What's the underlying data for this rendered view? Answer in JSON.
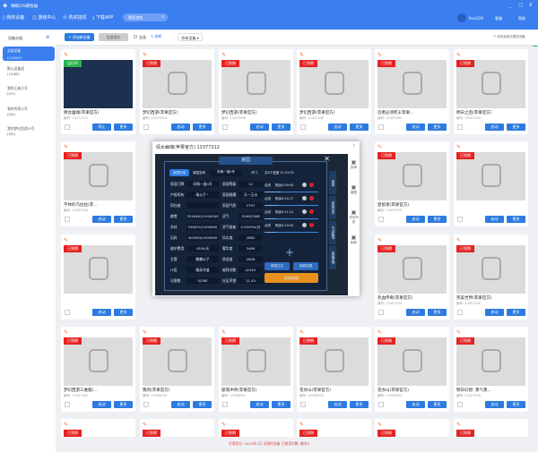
{
  "app": {
    "title": "辣椒iOS模拟器",
    "window_controls": [
      "_",
      "□",
      "X"
    ]
  },
  "nav": {
    "items": [
      {
        "label": "我的设备",
        "icon": "phone-icon"
      },
      {
        "label": "游戏中心",
        "icon": "gamepad-icon"
      },
      {
        "label": "购买挂机",
        "icon": "cart-icon"
      },
      {
        "label": "下载APP",
        "icon": "download-icon"
      }
    ],
    "search_placeholder": "搜索游戏"
  },
  "user": {
    "name": "feco520",
    "service": "客服",
    "help": "帮助"
  },
  "sidebar": {
    "header": "设备分组",
    "items": [
      {
        "label": "全部设备",
        "count": "(1/1047)"
      },
      {
        "label": "默认设备组",
        "count": "(1/265)"
      },
      {
        "label": "我的王者小号",
        "count": "(0/7)"
      },
      {
        "label": "我的传奇小号",
        "count": "(0/0)"
      },
      {
        "label": "我的梦幻西游小号",
        "count": "(0/0)"
      }
    ]
  },
  "toolbar": {
    "add": "+ 添加新设备",
    "batch": "批量操作",
    "select_all": "全选",
    "refresh": "刷新",
    "filter": "所有设备",
    "right_option": "优先使用无限的设备"
  },
  "cards": [
    {
      "status": "运行中",
      "name": "倩女幽魂(苹果官方)",
      "id": "编号: 13377312",
      "btn1": "停止",
      "btn2": "更多"
    },
    {
      "status": "已到期",
      "name": "梦幻西游(苹果官方)",
      "id": "编号: 13437910",
      "btn1": "启动",
      "btn2": "更多"
    },
    {
      "status": "已到期",
      "name": "梦幻西游(苹果官方)",
      "id": "编号: 13437909",
      "btn1": "启动",
      "btn2": "更多"
    },
    {
      "status": "已到期",
      "name": "梦幻西游(苹果官方)",
      "id": "编号: 13437908",
      "btn1": "启动",
      "btn2": "更多"
    },
    {
      "status": "已到期",
      "name": "忍者必须死3(苹果...",
      "id": "编号: 13457362",
      "btn1": "启动",
      "btn2": "更多"
    },
    {
      "status": "已到期",
      "name": "明日之后(苹果官方)",
      "id": "编号: 13457510",
      "btn1": "启动",
      "btn2": "更多"
    },
    {
      "status": "已到期",
      "name": "不休的乌拉拉(苹...",
      "id": "编号: 13457400",
      "btn1": "启动",
      "btn2": "更多"
    },
    {
      "status": "已到期",
      "name": "楚留香(苹果官方)",
      "id": "编号: 13457399",
      "btn1": "启动",
      "btn2": "更多"
    },
    {
      "status": "已到期",
      "name": "",
      "id": "",
      "btn1": "启动",
      "btn2": "更多"
    },
    {
      "status": "已到期",
      "name": "",
      "id": "",
      "btn1": "启动",
      "btn2": "更多"
    },
    {
      "status": "已到期",
      "name": "热血传奇(苹果官方)",
      "id": "编号: 13457234",
      "btn1": "启动",
      "btn2": "更多"
    },
    {
      "status": "已到期",
      "name": "完美世界(苹果官方)",
      "id": "编号: 13457200",
      "btn1": "启动",
      "btn2": "更多"
    },
    {
      "status": "已到期",
      "name": "梦幻西游三维版(...",
      "id": "编号: 13457181",
      "btn1": "启动",
      "btn2": "更多"
    },
    {
      "status": "已到期",
      "name": "我的(苹果官方)",
      "id": "编号: 13436434",
      "btn1": "启动",
      "btn2": "更多"
    },
    {
      "status": "已到期",
      "name": "部落冲突(苹果官方)",
      "id": "编号: 13436923",
      "btn1": "启动",
      "btn2": "更多"
    },
    {
      "status": "已到期",
      "name": "花亦山(苹果官方)",
      "id": "编号: 13436920",
      "btn1": "启动",
      "btn2": "更多"
    },
    {
      "status": "已到期",
      "name": "花亦山(苹果官方)",
      "id": "编号: 13436904",
      "btn1": "启动",
      "btn2": "更多"
    },
    {
      "status": "已到期",
      "name": "明日幻想: 勇气勇...",
      "id": "编号: 13427978",
      "btn1": "启动",
      "btn2": "更多"
    }
  ],
  "modal": {
    "title": "倩女幽魂(苹果官方) 13377312",
    "close": "×",
    "game": {
      "title": "家园",
      "tab": "家园外观",
      "name_label": "家园名称",
      "name_value": "风情一道4号",
      "door": "开门",
      "rows": [
        [
          "家园门牌",
          "风情一道4号",
          "家园等级",
          "12"
        ],
        [
          "产权所有",
          "瑞公子丶",
          "家园规模",
          "天一玉水"
        ],
        [
          "同住者",
          "",
          "家园气质",
          "2707"
        ],
        [
          "粮食",
          "3316461/1500000",
          "灵气",
          "3198/3368"
        ],
        [
          "木材",
          "546451/1500000",
          "灵气恢复",
          "0.0559%/分"
        ],
        [
          "石料",
          "402063/1500000",
          "风水度",
          "2882"
        ],
        [
          "维护费用",
          "4300/天",
          "奢华度",
          "3469"
        ],
        [
          "主管",
          "麒麟公子",
          "舒适度",
          "2626"
        ],
        [
          "仆役",
          "精英寻道",
          "被拜次数",
          "0/140"
        ],
        [
          "访客数",
          "0/280",
          "社区声望",
          "11.43"
        ]
      ],
      "progress_title": "共4个进度 11:22:51",
      "queue": [
        {
          "label": "合成",
          "time": "剩余0:09:45",
          "progress": 0.7
        },
        {
          "label": "合成",
          "time": "剩余0:10:17",
          "progress": 0.6
        },
        {
          "label": "合成",
          "time": "剩余0:11:21",
          "progress": 0.5
        },
        {
          "label": "合成",
          "time": "剩余0:10:45",
          "progress": 0.55
        }
      ],
      "side_tabs": [
        "家园",
        "家园仓库",
        "气运聚落",
        "家园宠物"
      ],
      "btn_log": "家园日志",
      "btn_setting": "家园设置",
      "btn_shop": "家园商城"
    },
    "side_tools": [
      "菜单",
      "截图",
      "任务列表",
      "刷新"
    ]
  },
  "footer": "可用积分: 2025年1月 无限时设备   已使用次数: 剩余0"
}
